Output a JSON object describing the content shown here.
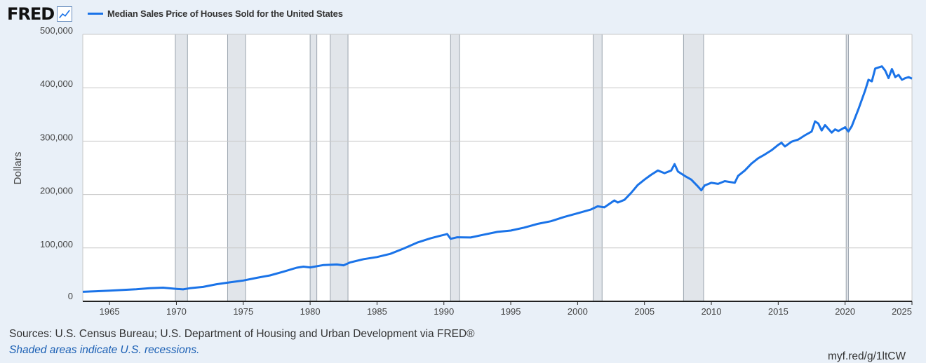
{
  "logo": {
    "text": "FRED",
    "icon": "chart-line-icon"
  },
  "chart_data": {
    "type": "line",
    "title": "",
    "xlabel": "",
    "ylabel": "Dollars",
    "xlim": [
      1963,
      2025
    ],
    "ylim": [
      0,
      500000
    ],
    "x_ticks": [
      1965,
      1970,
      1975,
      1980,
      1985,
      1990,
      1995,
      2000,
      2005,
      2010,
      2015,
      2020,
      2025
    ],
    "y_ticks": [
      0,
      100000,
      200000,
      300000,
      400000,
      500000
    ],
    "y_tick_labels": [
      "0",
      "100,000",
      "200,000",
      "300,000",
      "400,000",
      "500,000"
    ],
    "grid": "horizontal",
    "legend_position": "top-left",
    "series": [
      {
        "name": "Median Sales Price of Houses Sold for the United States",
        "color": "#1a73e8",
        "points": [
          [
            1963.0,
            17800
          ],
          [
            1964.0,
            18900
          ],
          [
            1965.0,
            20000
          ],
          [
            1966.0,
            21400
          ],
          [
            1967.0,
            22700
          ],
          [
            1968.0,
            24700
          ],
          [
            1969.0,
            25600
          ],
          [
            1970.0,
            23400
          ],
          [
            1970.5,
            22500
          ],
          [
            1971.0,
            24500
          ],
          [
            1972.0,
            27000
          ],
          [
            1973.0,
            32000
          ],
          [
            1974.0,
            35500
          ],
          [
            1975.0,
            39000
          ],
          [
            1976.0,
            44000
          ],
          [
            1977.0,
            48500
          ],
          [
            1978.0,
            55500
          ],
          [
            1979.0,
            63000
          ],
          [
            1979.5,
            65000
          ],
          [
            1980.0,
            63500
          ],
          [
            1981.0,
            68000
          ],
          [
            1982.0,
            69000
          ],
          [
            1982.5,
            67500
          ],
          [
            1983.0,
            73000
          ],
          [
            1984.0,
            79000
          ],
          [
            1985.0,
            83000
          ],
          [
            1986.0,
            89000
          ],
          [
            1987.0,
            99000
          ],
          [
            1988.0,
            110000
          ],
          [
            1989.0,
            118000
          ],
          [
            1989.75,
            123000
          ],
          [
            1990.25,
            126000
          ],
          [
            1990.5,
            117000
          ],
          [
            1991.0,
            120000
          ],
          [
            1992.0,
            119500
          ],
          [
            1993.0,
            125000
          ],
          [
            1994.0,
            130000
          ],
          [
            1995.0,
            132500
          ],
          [
            1996.0,
            138000
          ],
          [
            1997.0,
            145000
          ],
          [
            1998.0,
            150000
          ],
          [
            1999.0,
            158000
          ],
          [
            2000.0,
            165000
          ],
          [
            2001.0,
            172000
          ],
          [
            2001.5,
            178000
          ],
          [
            2002.0,
            176000
          ],
          [
            2002.75,
            189000
          ],
          [
            2003.0,
            185000
          ],
          [
            2003.5,
            190000
          ],
          [
            2004.0,
            203000
          ],
          [
            2004.5,
            218000
          ],
          [
            2005.0,
            228000
          ],
          [
            2005.5,
            237000
          ],
          [
            2006.0,
            245000
          ],
          [
            2006.5,
            240000
          ],
          [
            2007.0,
            245000
          ],
          [
            2007.25,
            257000
          ],
          [
            2007.5,
            243000
          ],
          [
            2008.0,
            235000
          ],
          [
            2008.5,
            228000
          ],
          [
            2009.0,
            215000
          ],
          [
            2009.25,
            208000
          ],
          [
            2009.5,
            217000
          ],
          [
            2010.0,
            222000
          ],
          [
            2010.5,
            220000
          ],
          [
            2011.0,
            225000
          ],
          [
            2011.75,
            222000
          ],
          [
            2012.0,
            235000
          ],
          [
            2012.5,
            245000
          ],
          [
            2013.0,
            258000
          ],
          [
            2013.5,
            268000
          ],
          [
            2014.0,
            275000
          ],
          [
            2014.5,
            283000
          ],
          [
            2015.0,
            293000
          ],
          [
            2015.25,
            297000
          ],
          [
            2015.5,
            290000
          ],
          [
            2016.0,
            299000
          ],
          [
            2016.5,
            303000
          ],
          [
            2017.0,
            311000
          ],
          [
            2017.5,
            318000
          ],
          [
            2017.75,
            337000
          ],
          [
            2018.0,
            333000
          ],
          [
            2018.25,
            320000
          ],
          [
            2018.5,
            330000
          ],
          [
            2019.0,
            316000
          ],
          [
            2019.25,
            322000
          ],
          [
            2019.5,
            319000
          ],
          [
            2020.0,
            326000
          ],
          [
            2020.25,
            318000
          ],
          [
            2020.5,
            328000
          ],
          [
            2021.0,
            360000
          ],
          [
            2021.5,
            395000
          ],
          [
            2021.75,
            415000
          ],
          [
            2022.0,
            412000
          ],
          [
            2022.25,
            436000
          ],
          [
            2022.75,
            440000
          ],
          [
            2023.0,
            432000
          ],
          [
            2023.25,
            418000
          ],
          [
            2023.5,
            435000
          ],
          [
            2023.75,
            420000
          ],
          [
            2024.0,
            424000
          ],
          [
            2024.25,
            415000
          ],
          [
            2024.5,
            418000
          ],
          [
            2024.75,
            420000
          ],
          [
            2025.0,
            417000
          ]
        ]
      }
    ],
    "recessions": [
      [
        1969.92,
        1970.83
      ],
      [
        1973.83,
        1975.17
      ],
      [
        1980.0,
        1980.5
      ],
      [
        1981.5,
        1982.83
      ],
      [
        1990.5,
        1991.17
      ],
      [
        2001.17,
        2001.83
      ],
      [
        2007.92,
        2009.42
      ],
      [
        2020.08,
        2020.25
      ]
    ]
  },
  "footer": {
    "sources": "Sources: U.S. Census Bureau; U.S. Department of Housing and Urban Development via FRED®",
    "recession_note": "Shaded areas indicate U.S. recessions.",
    "short_url": "myf.red/g/1ltCW"
  }
}
